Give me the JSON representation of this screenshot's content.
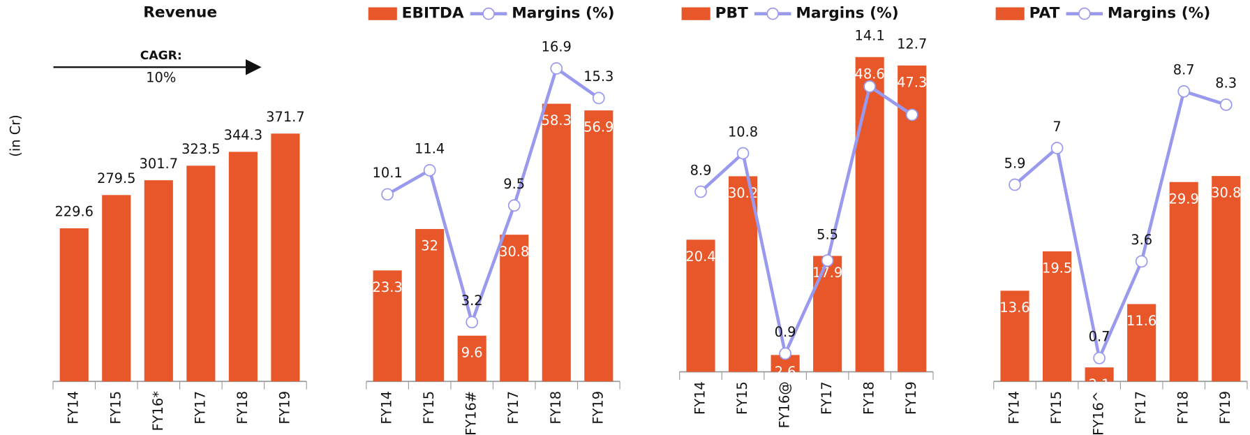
{
  "chart_data": [
    {
      "type": "bar",
      "title": "Revenue",
      "y_label": "(in Cr)",
      "annotation": {
        "label": "CAGR:",
        "value": "10%"
      },
      "categories": [
        "FY14",
        "FY15",
        "FY16*",
        "FY17",
        "FY18",
        "FY19"
      ],
      "values": [
        229.6,
        279.5,
        301.7,
        323.5,
        344.3,
        371.7
      ],
      "color": "#e8572a",
      "ylim": [
        0,
        500
      ]
    },
    {
      "type": "bar_line",
      "categories": [
        "FY14",
        "FY15",
        "FY16#",
        "FY17",
        "FY18",
        "FY19"
      ],
      "series": [
        {
          "name": "EBITDA",
          "color": "#e8572a",
          "values": [
            23.3,
            32,
            9.6,
            30.8,
            58.3,
            56.9
          ]
        },
        {
          "name": "Margins (%)",
          "color": "#9999ee",
          "axis": "y2",
          "values": [
            10.1,
            11.4,
            3.2,
            9.5,
            16.9,
            15.3
          ]
        }
      ],
      "ylim": [
        0,
        70
      ],
      "y2lim": [
        0,
        18
      ]
    },
    {
      "type": "bar_line",
      "categories": [
        "FY14",
        "FY15",
        "FY16@",
        "FY17",
        "FY18",
        "FY19"
      ],
      "series": [
        {
          "name": "PBT",
          "color": "#e8572a",
          "values": [
            20.4,
            30.2,
            2.6,
            17.9,
            48.6,
            47.3
          ]
        },
        {
          "name": "Margins (%)",
          "color": "#9999ee",
          "axis": "y2",
          "values": [
            8.9,
            10.8,
            0.9,
            5.5,
            14.1,
            12.7
          ]
        }
      ],
      "ylim": [
        0,
        50
      ],
      "y2lim": [
        0,
        16
      ]
    },
    {
      "type": "bar_line",
      "categories": [
        "FY14",
        "FY15",
        "FY16^",
        "FY17",
        "FY18",
        "FY19"
      ],
      "series": [
        {
          "name": "PAT",
          "color": "#e8572a",
          "values": [
            13.6,
            19.5,
            2.1,
            11.6,
            29.9,
            30.8
          ]
        },
        {
          "name": "Margins (%)",
          "color": "#9999ee",
          "axis": "y2",
          "values": [
            5.9,
            7,
            0.7,
            3.6,
            8.7,
            8.3
          ]
        }
      ],
      "ylim": [
        0,
        50
      ],
      "y2lim": [
        0,
        10
      ]
    }
  ]
}
